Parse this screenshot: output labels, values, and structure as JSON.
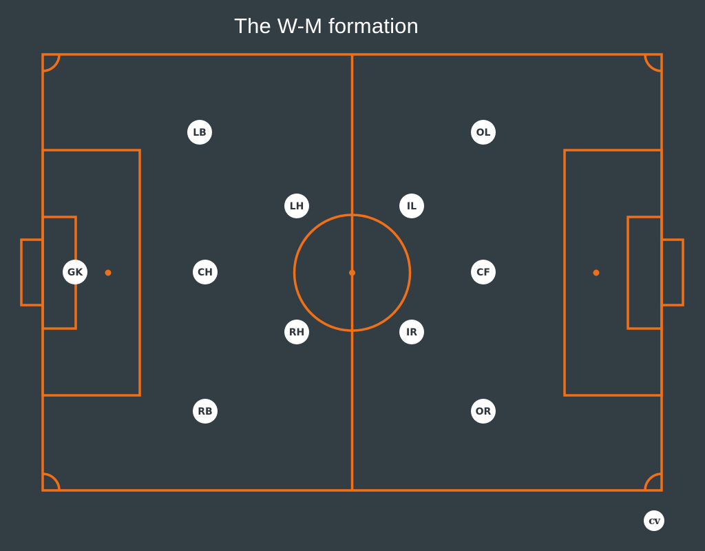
{
  "title": "The W-M formation",
  "colors": {
    "background": "#333d44",
    "lines": "#f07018",
    "player_fill": "#ffffff",
    "player_text": "#2e353b"
  },
  "players": [
    {
      "label": "GK",
      "role": "goalkeeper"
    },
    {
      "label": "LB",
      "role": "left back"
    },
    {
      "label": "CH",
      "role": "centre half"
    },
    {
      "label": "RB",
      "role": "right back"
    },
    {
      "label": "LH",
      "role": "left half"
    },
    {
      "label": "RH",
      "role": "right half"
    },
    {
      "label": "IL",
      "role": "inside left"
    },
    {
      "label": "IR",
      "role": "inside right"
    },
    {
      "label": "OL",
      "role": "outside left"
    },
    {
      "label": "CF",
      "role": "centre forward"
    },
    {
      "label": "OR",
      "role": "outside right"
    }
  ],
  "logo": {
    "text": "cv"
  }
}
